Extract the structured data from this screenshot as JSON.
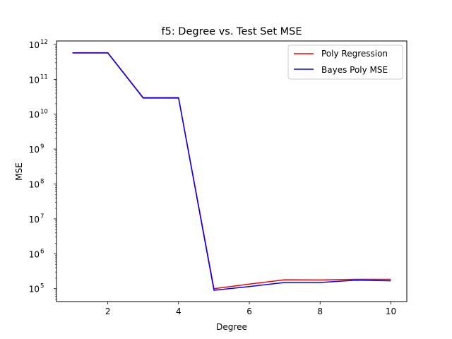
{
  "chart_data": {
    "type": "line",
    "title": "f5: Degree vs. Test Set MSE",
    "xlabel": "Degree",
    "ylabel": "MSE",
    "x": [
      1,
      2,
      3,
      4,
      5,
      6,
      7,
      8,
      9,
      10
    ],
    "xlim": [
      0.55,
      10.45
    ],
    "ylim_exp": [
      4.63,
      12.1
    ],
    "yscale": "log",
    "xticks": [
      2,
      4,
      6,
      8,
      10
    ],
    "yticks": [
      {
        "base": "10",
        "exp": "5"
      },
      {
        "base": "10",
        "exp": "6"
      },
      {
        "base": "10",
        "exp": "7"
      },
      {
        "base": "10",
        "exp": "8"
      },
      {
        "base": "10",
        "exp": "9"
      },
      {
        "base": "10",
        "exp": "10"
      },
      {
        "base": "10",
        "exp": "11"
      },
      {
        "base": "10",
        "exp": "12"
      }
    ],
    "series": [
      {
        "name": "Poly Regression",
        "color": "#ff0000",
        "values": [
          580000000000,
          580000000000,
          30000000000,
          30000000000,
          100000,
          135000,
          180000,
          178000,
          185000,
          185000
        ]
      },
      {
        "name": "Bayes Poly MSE",
        "color": "#0000ff",
        "values": [
          570000000000,
          570000000000,
          29000000000,
          29000000000,
          90000,
          115000,
          150000,
          150000,
          175000,
          168000
        ]
      }
    ],
    "grid": false,
    "legend_position": "upper right"
  }
}
